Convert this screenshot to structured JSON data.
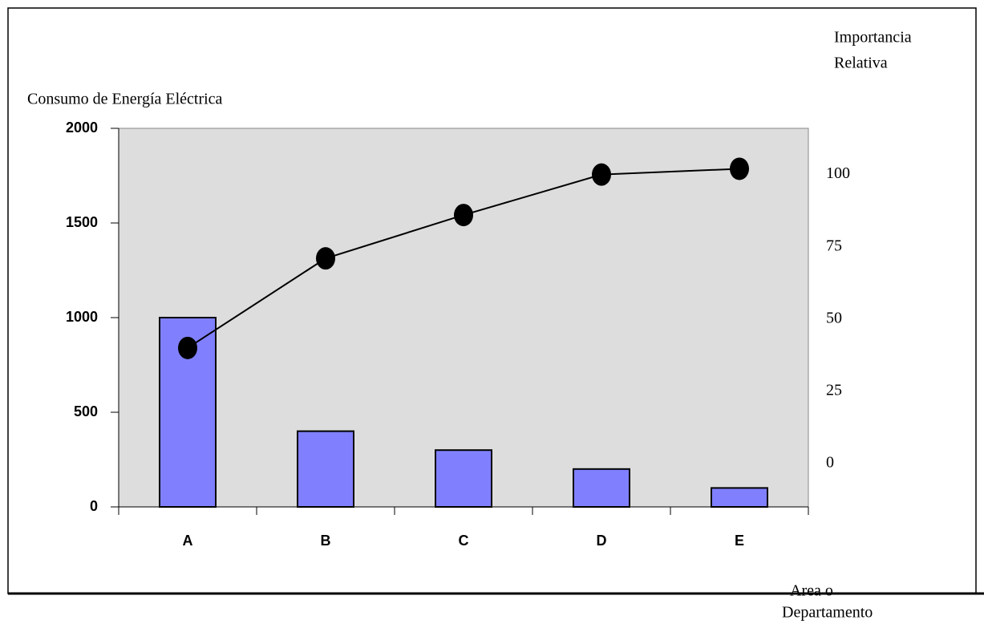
{
  "chart_data": {
    "type": "pareto",
    "y_label": "Consumo de Energía Eléctrica",
    "y2_label": [
      "Importancia",
      "Relativa"
    ],
    "x_label": [
      "Area o",
      "Departamento"
    ],
    "categories": [
      "A",
      "B",
      "C",
      "D",
      "E"
    ],
    "series": [
      {
        "type": "bar",
        "color": "#8080ff",
        "values": [
          1000,
          400,
          300,
          200,
          100
        ]
      },
      {
        "type": "line",
        "axis": "y2",
        "color": "#000000",
        "values": [
          40,
          71,
          86,
          100,
          102
        ]
      }
    ],
    "ylim": [
      0,
      2000
    ],
    "yticks": [
      0,
      500,
      1000,
      1500,
      2000
    ],
    "y2lim": [
      -15,
      116
    ],
    "y2ticks": [
      0,
      25,
      50,
      75,
      100
    ],
    "plot_background": "#dddddd",
    "grid": false
  }
}
